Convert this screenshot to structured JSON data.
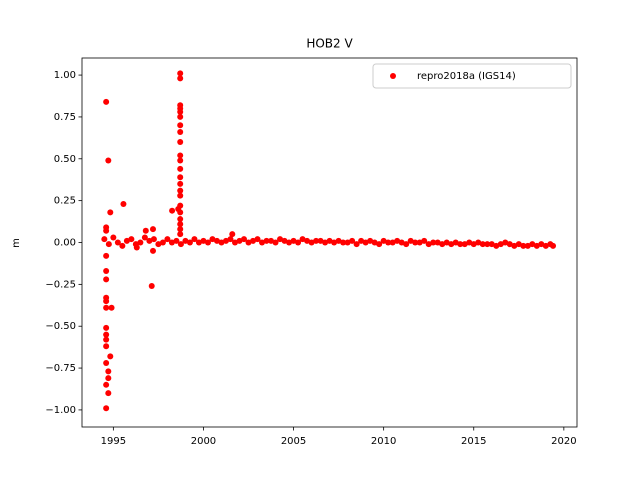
{
  "chart_data": {
    "type": "scatter",
    "title": "HOB2 V",
    "y_label": "m",
    "xlim": [
      1993.26,
      2020.73
    ],
    "ylim": [
      -1.102,
      1.102
    ],
    "xticks": [
      1995,
      2000,
      2005,
      2010,
      2015,
      2020
    ],
    "yticks": [
      {
        "value": -1,
        "label": "−1.00"
      },
      {
        "value": -0.75,
        "label": "−0.75"
      },
      {
        "value": -0.5,
        "label": "−0.50"
      },
      {
        "value": -0.25,
        "label": "−0.25"
      },
      {
        "value": 0,
        "label": "0.00"
      },
      {
        "value": 0.25,
        "label": "0.25"
      },
      {
        "value": 0.5,
        "label": "0.50"
      },
      {
        "value": 0.75,
        "label": "0.75"
      },
      {
        "value": 1,
        "label": "1.00"
      }
    ],
    "grid": false,
    "legend_position": "upper-right",
    "series": [
      {
        "name": "repro2018a (IGS14)",
        "color": "#ff0000",
        "x": [
          1994.6,
          1994.6,
          1994.6,
          1994.6,
          1994.6,
          1994.6,
          1994.6,
          1994.6,
          1994.6,
          1994.6,
          1994.6,
          1994.6,
          1994.6,
          1994.6,
          1994.6,
          1994.6,
          1994.72,
          1994.72,
          1994.72,
          1994.72,
          1994.83,
          1994.83,
          1994.9,
          1995.56,
          1996.3,
          1996.8,
          1997.2,
          1997.2,
          1997.13,
          1998.26,
          1998.6,
          1998.71,
          1998.71,
          1998.71,
          1998.71,
          1998.71,
          1998.71,
          1998.71,
          1998.71,
          1998.71,
          1998.71,
          1998.71,
          1998.71,
          1998.71,
          1998.71,
          1998.71,
          1998.71,
          1998.71,
          1998.71,
          1998.71,
          1998.71,
          1998.71,
          1998.71,
          2001.6,
          1994.5,
          1994.75,
          1995,
          1995.25,
          1995.5,
          1995.75,
          1996,
          1996.25,
          1996.5,
          1996.75,
          1997,
          1997.25,
          1997.5,
          1997.75,
          1998,
          1998.25,
          1998.5,
          1998.75,
          1999,
          1999.25,
          1999.5,
          1999.75,
          2000,
          2000.25,
          2000.5,
          2000.75,
          2001,
          2001.25,
          2001.5,
          2001.75,
          2002,
          2002.25,
          2002.5,
          2002.75,
          2003,
          2003.25,
          2003.5,
          2003.75,
          2004,
          2004.25,
          2004.5,
          2004.75,
          2005,
          2005.25,
          2005.5,
          2005.75,
          2006,
          2006.25,
          2006.5,
          2006.75,
          2007,
          2007.25,
          2007.5,
          2007.75,
          2008,
          2008.25,
          2008.5,
          2008.75,
          2009,
          2009.25,
          2009.5,
          2009.75,
          2010,
          2010.25,
          2010.5,
          2010.75,
          2011,
          2011.25,
          2011.5,
          2011.75,
          2012,
          2012.25,
          2012.5,
          2012.75,
          2013,
          2013.25,
          2013.5,
          2013.75,
          2014,
          2014.25,
          2014.5,
          2014.75,
          2015,
          2015.25,
          2015.5,
          2015.75,
          2016,
          2016.25,
          2016.5,
          2016.75,
          2017,
          2017.25,
          2017.5,
          2017.75,
          2018,
          2018.25,
          2018.5,
          2018.75,
          2019,
          2019.25,
          2019.4
        ],
        "values": [
          0.84,
          0.09,
          0.07,
          -0.08,
          -0.17,
          -0.22,
          -0.33,
          -0.35,
          -0.39,
          -0.51,
          -0.55,
          -0.58,
          -0.62,
          -0.72,
          -0.85,
          -0.99,
          0.49,
          -0.81,
          -0.9,
          -0.77,
          0.18,
          -0.68,
          -0.39,
          0.23,
          -0.03,
          0.07,
          0.08,
          -0.05,
          -0.26,
          0.19,
          0.2,
          1.01,
          0.98,
          0.82,
          0.8,
          0.78,
          0.75,
          0.7,
          0.66,
          0.6,
          0.52,
          0.49,
          0.44,
          0.39,
          0.35,
          0.31,
          0.28,
          0.22,
          0.18,
          0.14,
          0.11,
          0.08,
          0.05,
          0.05,
          0.02,
          -0.01,
          0.03,
          0,
          -0.02,
          0.01,
          0.02,
          -0.01,
          0,
          0.03,
          0.01,
          0.02,
          -0.01,
          0,
          0.02,
          0,
          0.01,
          -0.01,
          0.01,
          0,
          0.02,
          0,
          0.01,
          0,
          0.02,
          0.01,
          0,
          0.01,
          0.02,
          0,
          0.01,
          0.02,
          0,
          0.01,
          0.02,
          0,
          0.01,
          0.01,
          0,
          0.02,
          0.01,
          0,
          0.01,
          0,
          0.02,
          0.01,
          0,
          0.01,
          0.01,
          0,
          0.01,
          0,
          0.01,
          0,
          0,
          0.01,
          -0.01,
          0.01,
          0,
          0.01,
          0,
          -0.01,
          0.01,
          0,
          0,
          0.01,
          0,
          -0.01,
          0.01,
          0,
          0,
          0.01,
          -0.01,
          0,
          0,
          -0.01,
          0,
          -0.01,
          0,
          -0.01,
          -0.01,
          0,
          -0.01,
          0,
          -0.01,
          -0.01,
          -0.01,
          -0.02,
          -0.01,
          0,
          -0.01,
          -0.02,
          -0.01,
          -0.02,
          -0.02,
          -0.01,
          -0.02,
          -0.01,
          -0.02,
          -0.01,
          -0.02
        ]
      }
    ]
  }
}
